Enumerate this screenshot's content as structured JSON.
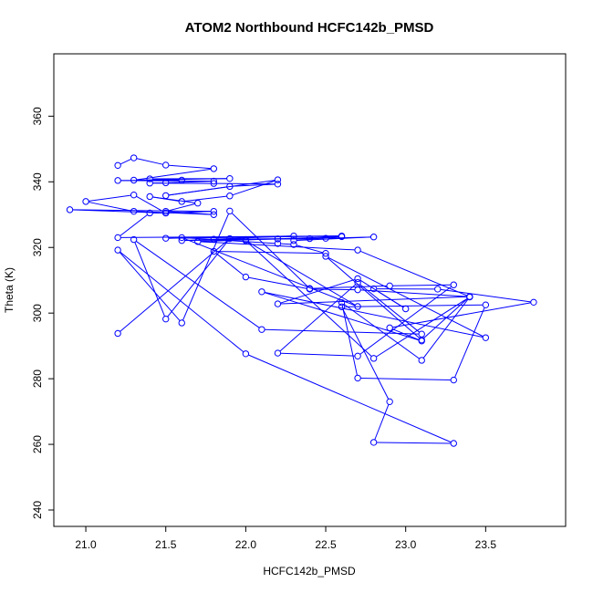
{
  "chart_data": {
    "type": "line",
    "title": "ATOM2 Northbound HCFC142b_PMSD",
    "xlabel": "HCFC142b_PMSD",
    "ylabel": "Theta (K)",
    "xlim": [
      20.8,
      24.0
    ],
    "ylim": [
      235,
      379
    ],
    "x_ticks": [
      21.0,
      21.5,
      22.0,
      22.5,
      23.0,
      23.5
    ],
    "x_tick_labels": [
      "21.0",
      "21.5",
      "22.0",
      "22.5",
      "23.0",
      "23.5"
    ],
    "y_ticks": [
      240,
      260,
      280,
      300,
      320,
      340,
      360
    ],
    "y_tick_labels": [
      "240",
      "260",
      "280",
      "300",
      "320",
      "340",
      "360"
    ],
    "series_color": "#0000ff",
    "grid": false,
    "legend": "none",
    "series": [
      {
        "x": [
          21.2,
          21.3,
          21.5,
          21.8,
          21.3,
          21.9,
          21.4,
          21.6,
          21.2,
          21.8,
          21.5,
          21.4,
          21.8,
          22.2,
          21.9,
          21.5,
          22.2,
          21.9,
          21.6,
          21.4,
          21.7,
          21.5,
          21.8,
          21.3,
          21.0,
          21.3,
          21.5,
          21.8,
          20.9,
          21.5,
          21.4,
          21.2,
          22.6,
          21.5,
          22.3,
          21.6,
          22.0,
          22.4,
          21.8,
          22.2,
          22.5,
          22.8,
          22.3,
          22.6,
          21.7,
          22.7,
          23.4,
          22.2,
          22.7,
          23.0,
          22.8,
          23.2,
          23.8,
          22.9,
          23.1,
          22.1,
          23.5,
          22.5,
          23.1,
          23.4,
          22.7,
          22.4,
          22.0,
          21.8,
          22.5,
          22.3,
          22.2,
          21.6,
          22.7,
          22.0,
          22.8,
          23.4,
          23.1,
          22.6,
          22.7,
          23.3,
          23.5,
          22.6,
          22.9,
          22.8,
          23.3,
          22.0,
          21.2,
          21.6,
          21.9,
          22.4,
          22.9,
          23.3,
          22.7,
          22.2,
          22.7,
          23.1,
          22.1,
          21.3,
          21.5,
          21.9,
          21.2
        ],
        "y": [
          345,
          347.3,
          345.1,
          344,
          340.5,
          341,
          340.9,
          340.5,
          340.4,
          340.2,
          339.7,
          339.6,
          339.5,
          339.3,
          338.6,
          335.8,
          340.6,
          335.7,
          334,
          335.5,
          333.5,
          331,
          330,
          331,
          334,
          336,
          330.5,
          331,
          331.5,
          330.5,
          330.5,
          323,
          323.5,
          322.8,
          323.5,
          322.1,
          322.4,
          322.7,
          322.5,
          322.6,
          322.8,
          323.2,
          322.1,
          323.3,
          321.8,
          319.2,
          305,
          302.8,
          310.5,
          301.3,
          307.4,
          307.3,
          303.3,
          295.5,
          291.5,
          306.5,
          292.5,
          317.3,
          291.8,
          305,
          307.1,
          307.3,
          311,
          318.8,
          318.2,
          320.9,
          321.2,
          323,
          302,
          322.1,
          286.2,
          304.9,
          285.6,
          303.2,
          280.2,
          279.6,
          302.5,
          301.9,
          273,
          260.6,
          260.3,
          287.6,
          319.2,
          297,
          331.1,
          307.5,
          308.3,
          308.6,
          286.9,
          287.8,
          309.3,
          293.6,
          295,
          322.4,
          298.2,
          322.7,
          293.8
        ]
      }
    ]
  }
}
